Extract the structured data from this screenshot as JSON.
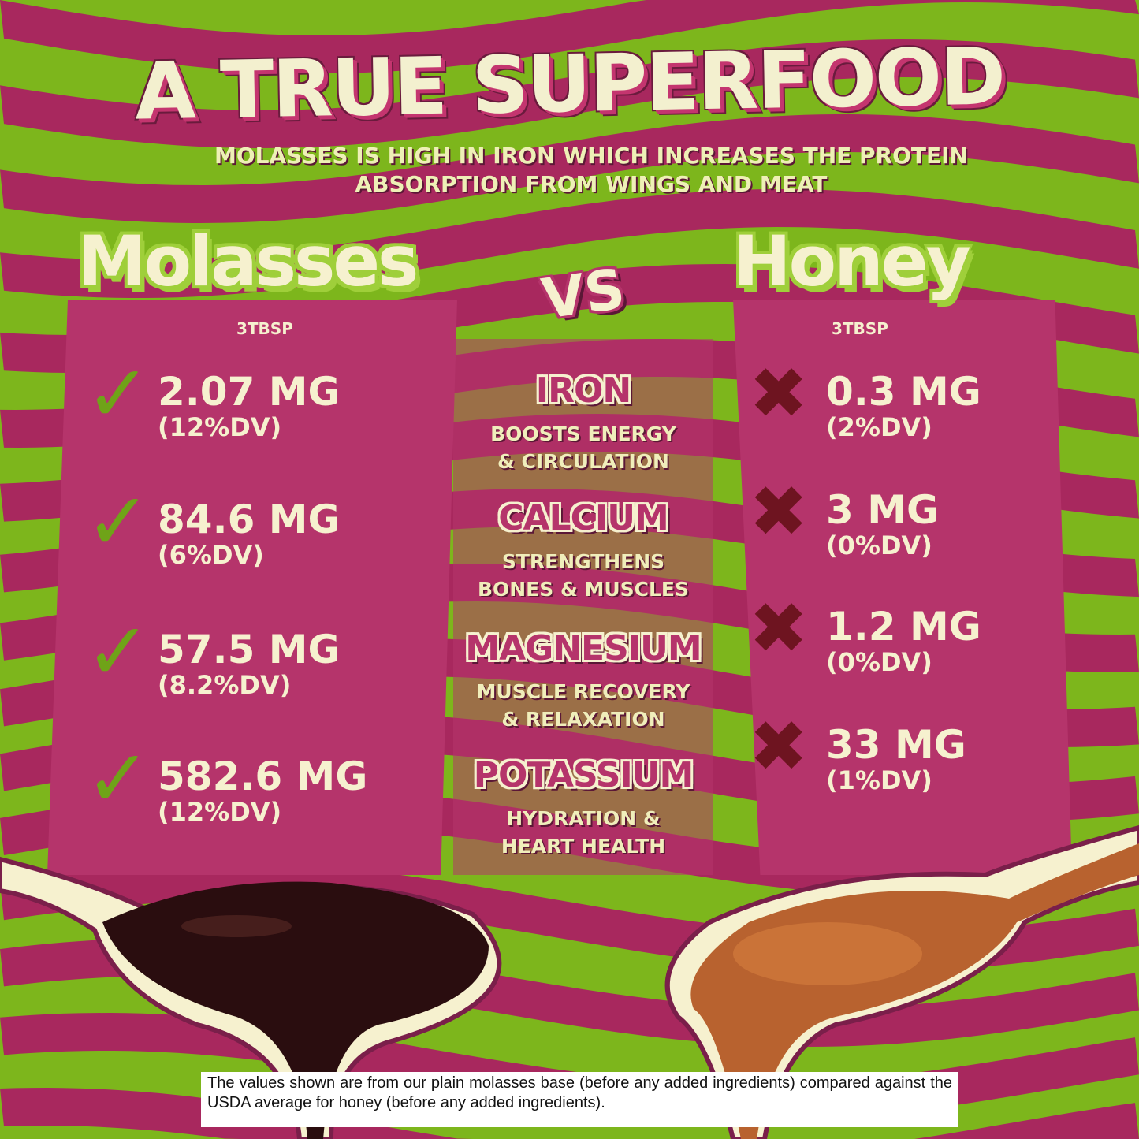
{
  "title": "A TRUE SUPERFOOD",
  "subtitle": "Molasses is high in iron which increases the protein absorption from wings and meat",
  "vs_label": "VS",
  "colors": {
    "background_green": "#7db61c",
    "stripe_magenta": "#a8285e",
    "panel": "#b5346b",
    "text_cream": "#f6f1cf"
  },
  "molasses": {
    "heading": "Molasses",
    "serving": "3TBSP",
    "icon": "check-icon",
    "values": [
      {
        "amount": "2.07 MG",
        "dv": "(12%DV)"
      },
      {
        "amount": "84.6 MG",
        "dv": "(6%DV)"
      },
      {
        "amount": "57.5 MG",
        "dv": "(8.2%DV)"
      },
      {
        "amount": "582.6 MG",
        "dv": "(12%DV)"
      }
    ]
  },
  "honey": {
    "heading": "Honey",
    "serving": "3TBSP",
    "icon": "x-icon",
    "values": [
      {
        "amount": "0.3 MG",
        "dv": "(2%DV)"
      },
      {
        "amount": "3 MG",
        "dv": "(0%DV)"
      },
      {
        "amount": "1.2 MG",
        "dv": "(0%DV)"
      },
      {
        "amount": "33 MG",
        "dv": "(1%DV)"
      }
    ]
  },
  "nutrients": [
    {
      "name": "IRON",
      "desc1": "BOOSTS ENERGY",
      "desc2": "& CIRCULATION"
    },
    {
      "name": "CALCIUM",
      "desc1": "STRENGTHENS",
      "desc2": "BONES & MUSCLES"
    },
    {
      "name": "MAGNESIUM",
      "desc1": "MUSCLE RECOVERY",
      "desc2": "& RELAXATION"
    },
    {
      "name": "POTASSIUM",
      "desc1": "HYDRATION &",
      "desc2": "HEART HEALTH"
    }
  ],
  "footnote": "The values shown are from our plain molasses base (before any added ingredients) compared against the USDA average for honey (before any added ingredients)."
}
